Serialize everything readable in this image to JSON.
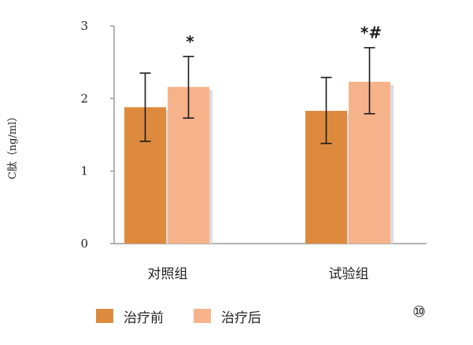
{
  "chart_data": {
    "type": "bar",
    "ylabel": "C肽（ng/ml）",
    "xlabel": "",
    "ylim": [
      0,
      3
    ],
    "yticks": [
      "0",
      "1",
      "2",
      "3"
    ],
    "categories": [
      "对照组",
      "试验组"
    ],
    "series": [
      {
        "name": "治疗前",
        "color": "#dd8a3e",
        "values": [
          1.88,
          1.83
        ],
        "error": [
          [
            1.41,
            2.35
          ],
          [
            1.38,
            2.29
          ]
        ],
        "annotations": [
          "",
          ""
        ]
      },
      {
        "name": "治疗后",
        "color": "#f6b28b",
        "values": [
          2.16,
          2.23
        ],
        "error": [
          [
            1.73,
            2.58
          ],
          [
            1.79,
            2.7
          ]
        ],
        "annotations": [
          "*",
          "*#"
        ]
      }
    ],
    "legend_position": "bottom"
  },
  "figure_number": "⑩"
}
